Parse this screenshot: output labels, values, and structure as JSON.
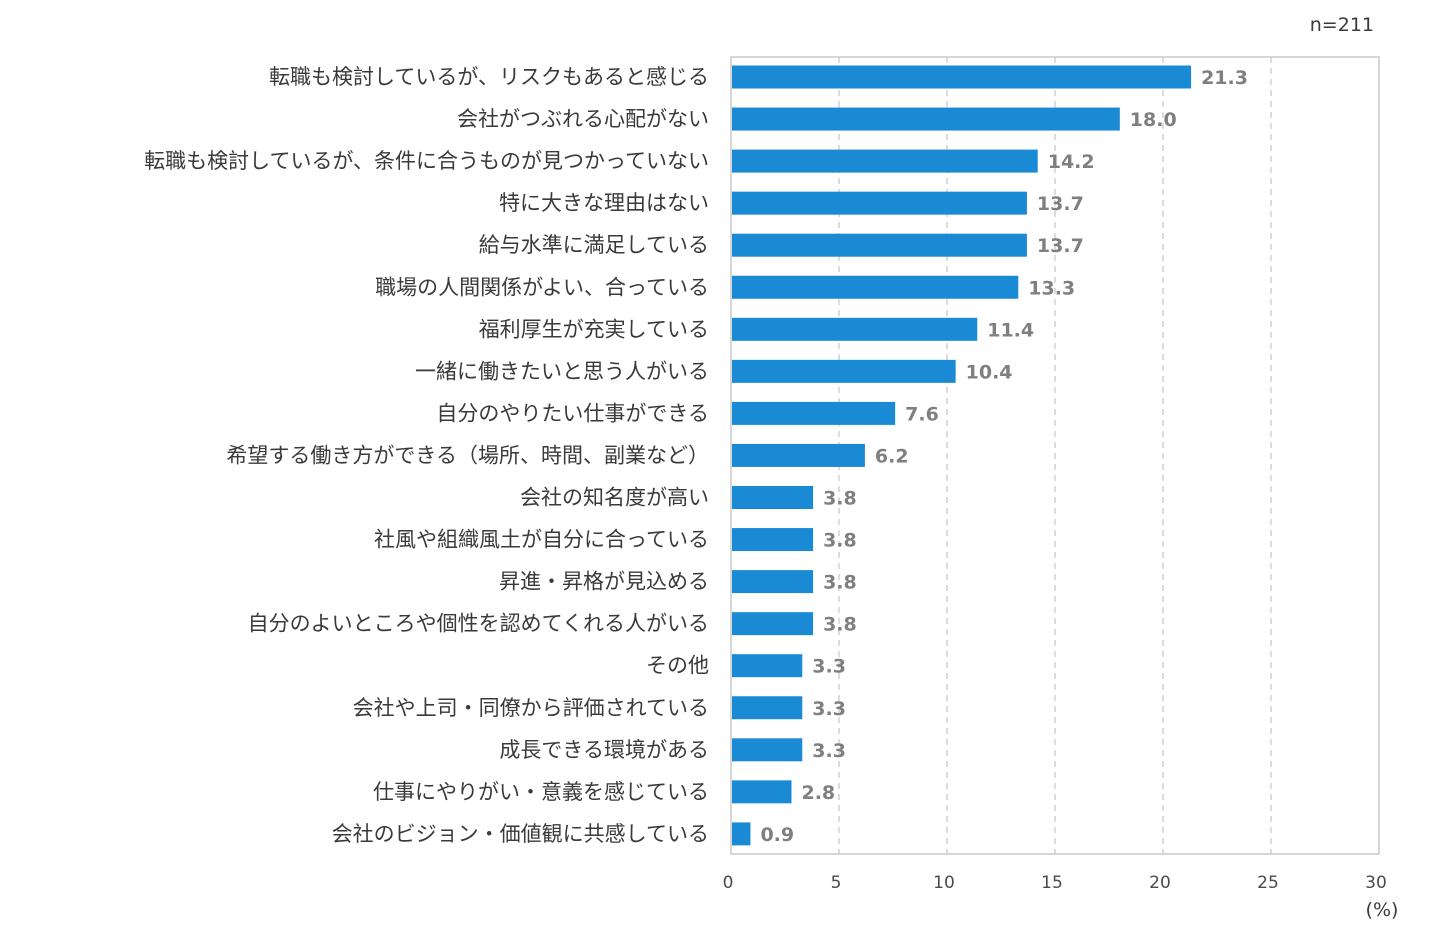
{
  "chart_data": {
    "type": "bar",
    "orientation": "horizontal",
    "sample_size": "n=211",
    "unit_label": "(%)",
    "categories": [
      "転職も検討しているが、リスクもあると感じる",
      "会社がつぶれる心配がない",
      "転職も検討しているが、条件に合うものが見つかっていない",
      "特に大きな理由はない",
      "給与水準に満足している",
      "職場の人間関係がよい、合っている",
      "福利厚生が充実している",
      "一緒に働きたいと思う人がいる",
      "自分のやりたい仕事ができる",
      "希望する働き方ができる（場所、時間、副業など）",
      "会社の知名度が高い",
      "社風や組織風土が自分に合っている",
      "昇進・昇格が見込める",
      "自分のよいところや個性を認めてくれる人がいる",
      "その他",
      "会社や上司・同僚から評価されている",
      "成長できる環境がある",
      "仕事にやりがい・意義を感じている",
      "会社のビジョン・価値観に共感している"
    ],
    "values": [
      21.3,
      18.0,
      14.2,
      13.7,
      13.7,
      13.3,
      11.4,
      10.4,
      7.6,
      6.2,
      3.8,
      3.8,
      3.8,
      3.8,
      3.3,
      3.3,
      3.3,
      2.8,
      0.9
    ],
    "value_labels": [
      "21.3",
      "18.0",
      "14.2",
      "13.7",
      "13.7",
      "13.3",
      "11.4",
      "10.4",
      "7.6",
      "6.2",
      "3.8",
      "3.8",
      "3.8",
      "3.8",
      "3.3",
      "3.3",
      "3.3",
      "2.8",
      "0.9"
    ],
    "xlim": [
      0,
      30
    ],
    "xticks": [
      0,
      5,
      10,
      15,
      20,
      25,
      30
    ],
    "xtick_labels": [
      "0",
      "5",
      "10",
      "15",
      "20",
      "25",
      "30"
    ],
    "grid": "vertical dashed",
    "bar_color": "#1a8ad4",
    "grid_color": "#d0d0d0",
    "frame_color": "#c8c8c8"
  }
}
